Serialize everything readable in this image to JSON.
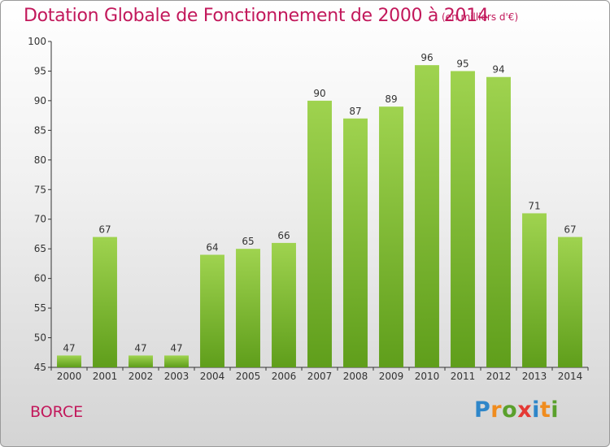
{
  "header": {
    "title": "Dotation Globale de Fonctionnement de 2000 à 2014",
    "subtitle": "(en milliers d'€)"
  },
  "commune": "BORCE",
  "logo": {
    "letters": [
      "P",
      "r",
      "o",
      "x",
      "i",
      "t",
      "i"
    ],
    "colors": [
      "#2e86c9",
      "#f08c1e",
      "#5aa02c",
      "#e53935",
      "#2e86c9",
      "#f08c1e",
      "#5aa02c"
    ]
  },
  "chart_data": {
    "type": "bar",
    "categories": [
      "2000",
      "2001",
      "2002",
      "2003",
      "2004",
      "2005",
      "2006",
      "2007",
      "2008",
      "2009",
      "2010",
      "2011",
      "2012",
      "2013",
      "2014"
    ],
    "values": [
      47,
      67,
      47,
      47,
      64,
      65,
      66,
      90,
      87,
      89,
      96,
      95,
      94,
      71,
      67
    ],
    "ylim": [
      45,
      100
    ],
    "yticks": [
      45,
      50,
      55,
      60,
      65,
      70,
      75,
      80,
      85,
      90,
      95,
      100
    ],
    "grid": false,
    "bar_color": "#7cbd2f"
  }
}
